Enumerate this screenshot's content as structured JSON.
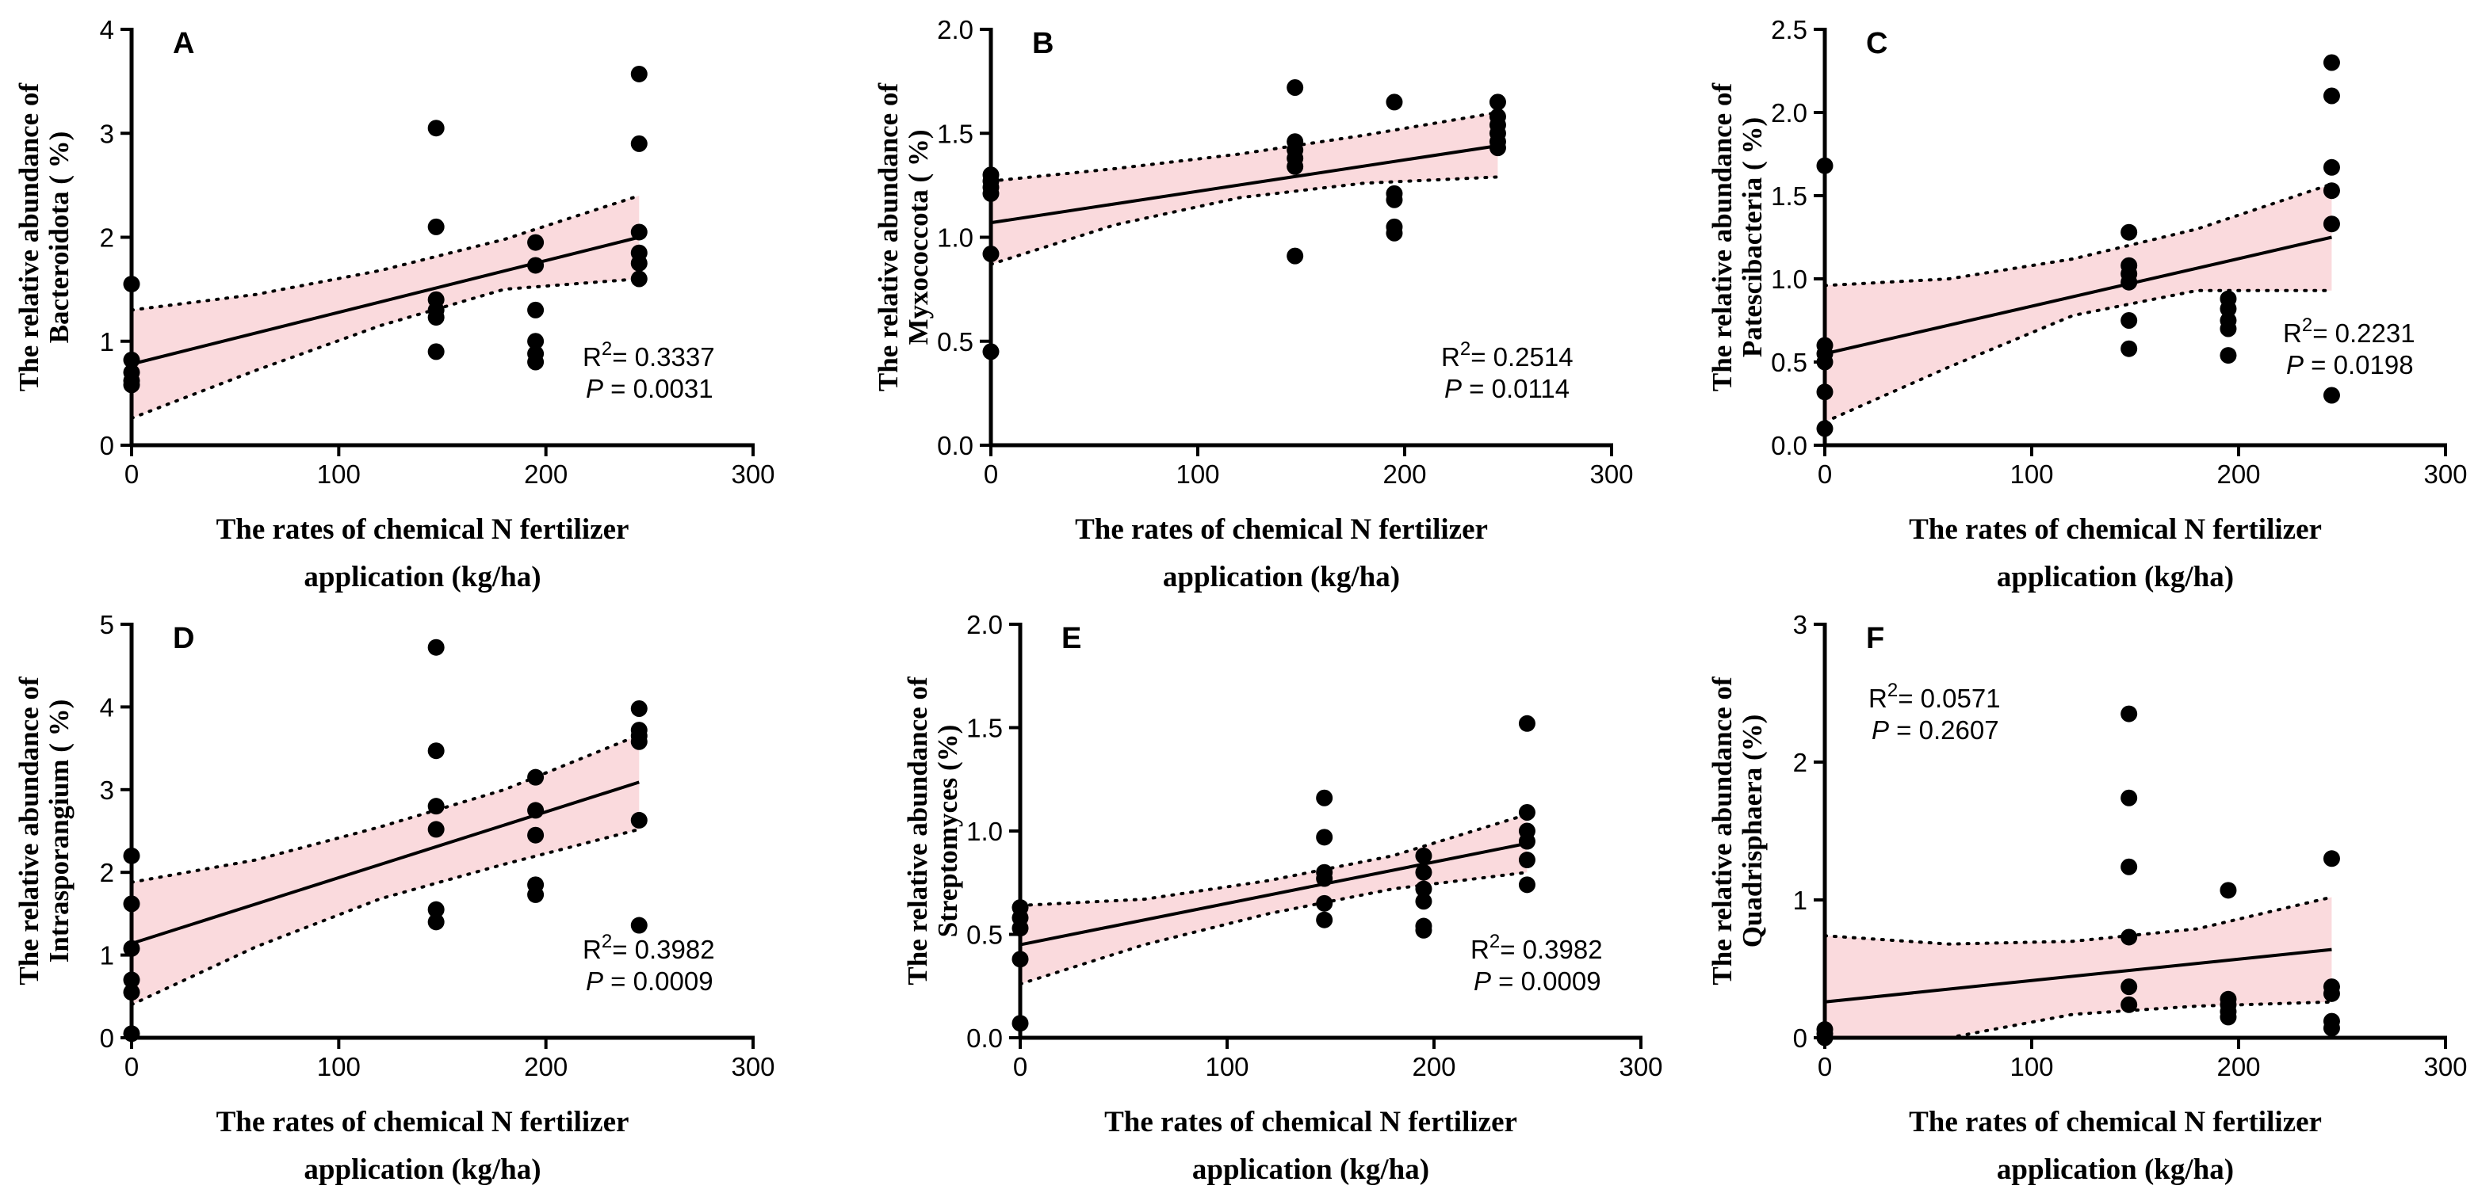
{
  "figure": {
    "x_axis_title_line1": "The rates of chemical N fertilizer",
    "x_axis_title_line2": "application (kg/ha)",
    "colors": {
      "band": "#fadadd",
      "ink": "#000000"
    }
  },
  "chart_data": [
    {
      "type": "scatter",
      "panel": "A",
      "ylabel_line1": "The relative abundance of",
      "ylabel_line2": "Bacteroidota ( %)",
      "xlabel_line1": "The rates of chemical N fertilizer",
      "xlabel_line2": "application (kg/ha)",
      "xlim": [
        0,
        300
      ],
      "ylim": [
        0,
        4
      ],
      "xticks": [
        0,
        100,
        200,
        300
      ],
      "xtick_labels": [
        "0",
        "100",
        "200",
        "300"
      ],
      "yticks": [
        0,
        1,
        2,
        3,
        4
      ],
      "ytick_labels": [
        "0",
        "1",
        "2",
        "3",
        "4"
      ],
      "points": [
        [
          0,
          1.55
        ],
        [
          0,
          0.82
        ],
        [
          0,
          0.7
        ],
        [
          0,
          0.62
        ],
        [
          0,
          0.58
        ],
        [
          147,
          3.05
        ],
        [
          147,
          2.1
        ],
        [
          147,
          1.4
        ],
        [
          147,
          1.3
        ],
        [
          147,
          1.23
        ],
        [
          147,
          0.9
        ],
        [
          195,
          1.95
        ],
        [
          195,
          1.73
        ],
        [
          195,
          1.3
        ],
        [
          195,
          1.0
        ],
        [
          195,
          0.88
        ],
        [
          195,
          0.8
        ],
        [
          245,
          3.57
        ],
        [
          245,
          2.9
        ],
        [
          245,
          2.05
        ],
        [
          245,
          1.85
        ],
        [
          245,
          1.75
        ],
        [
          245,
          1.6
        ]
      ],
      "fit": {
        "x": [
          0,
          245
        ],
        "y": [
          0.78,
          2.0
        ]
      },
      "ci_upper": [
        [
          0,
          1.3
        ],
        [
          60,
          1.45
        ],
        [
          120,
          1.68
        ],
        [
          180,
          1.98
        ],
        [
          245,
          2.4
        ]
      ],
      "ci_lower": [
        [
          0,
          0.26
        ],
        [
          60,
          0.72
        ],
        [
          120,
          1.15
        ],
        [
          180,
          1.5
        ],
        [
          245,
          1.6
        ]
      ],
      "r2_label": "R",
      "r2_sup": "2",
      "r2_value": "= 0.3337",
      "p_label": "P",
      "p_value": " = 0.0031",
      "stats_pos": "bottom-right"
    },
    {
      "type": "scatter",
      "panel": "B",
      "ylabel_line1": "The relative abundance of",
      "ylabel_line2": "Myxococcota ( %)",
      "xlabel_line1": "The rates of chemical N fertilizer",
      "xlabel_line2": "application (kg/ha)",
      "xlim": [
        0,
        300
      ],
      "ylim": [
        0,
        2
      ],
      "xticks": [
        0,
        100,
        200,
        300
      ],
      "xtick_labels": [
        "0",
        "100",
        "200",
        "300"
      ],
      "yticks": [
        0,
        0.5,
        1,
        1.5,
        2
      ],
      "ytick_labels": [
        "0.0",
        "0.5",
        "1.0",
        "1.5",
        "2.0"
      ],
      "points": [
        [
          0,
          1.3
        ],
        [
          0,
          1.27
        ],
        [
          0,
          1.24
        ],
        [
          0,
          1.21
        ],
        [
          0,
          0.92
        ],
        [
          0,
          0.45
        ],
        [
          147,
          1.72
        ],
        [
          147,
          1.46
        ],
        [
          147,
          1.42
        ],
        [
          147,
          1.38
        ],
        [
          147,
          1.34
        ],
        [
          147,
          0.91
        ],
        [
          195,
          1.65
        ],
        [
          195,
          1.21
        ],
        [
          195,
          1.18
        ],
        [
          195,
          1.05
        ],
        [
          195,
          1.02
        ],
        [
          245,
          1.65
        ],
        [
          245,
          1.58
        ],
        [
          245,
          1.54
        ],
        [
          245,
          1.5
        ],
        [
          245,
          1.46
        ],
        [
          245,
          1.43
        ]
      ],
      "fit": {
        "x": [
          0,
          245
        ],
        "y": [
          1.07,
          1.44
        ]
      },
      "ci_upper": [
        [
          0,
          1.27
        ],
        [
          60,
          1.33
        ],
        [
          120,
          1.4
        ],
        [
          180,
          1.49
        ],
        [
          245,
          1.6
        ]
      ],
      "ci_lower": [
        [
          0,
          0.87
        ],
        [
          60,
          1.06
        ],
        [
          120,
          1.19
        ],
        [
          180,
          1.26
        ],
        [
          245,
          1.29
        ]
      ],
      "r2_label": "R",
      "r2_sup": "2",
      "r2_value": "= 0.2514",
      "p_label": "P",
      "p_value": " = 0.0114",
      "stats_pos": "bottom-right"
    },
    {
      "type": "scatter",
      "panel": "C",
      "ylabel_line1": "The relative abundance of",
      "ylabel_line2": "Patescibacteria ( %)",
      "xlabel_line1": "The rates of chemical N fertilizer",
      "xlabel_line2": "application (kg/ha)",
      "xlim": [
        0,
        300
      ],
      "ylim": [
        0,
        2.5
      ],
      "xticks": [
        0,
        100,
        200,
        300
      ],
      "xtick_labels": [
        "0",
        "100",
        "200",
        "300"
      ],
      "yticks": [
        0,
        0.5,
        1,
        1.5,
        2,
        2.5
      ],
      "ytick_labels": [
        "0.0",
        "0.5",
        "1.0",
        "1.5",
        "2.0",
        "2.5"
      ],
      "points": [
        [
          0,
          1.68
        ],
        [
          0,
          0.6
        ],
        [
          0,
          0.55
        ],
        [
          0,
          0.5
        ],
        [
          0,
          0.32
        ],
        [
          0,
          0.1
        ],
        [
          147,
          1.28
        ],
        [
          147,
          1.08
        ],
        [
          147,
          1.03
        ],
        [
          147,
          0.98
        ],
        [
          147,
          0.75
        ],
        [
          147,
          0.58
        ],
        [
          195,
          0.88
        ],
        [
          195,
          0.82
        ],
        [
          195,
          0.75
        ],
        [
          195,
          0.7
        ],
        [
          195,
          0.54
        ],
        [
          245,
          2.3
        ],
        [
          245,
          2.1
        ],
        [
          245,
          1.67
        ],
        [
          245,
          1.53
        ],
        [
          245,
          1.33
        ],
        [
          245,
          0.3
        ]
      ],
      "fit": {
        "x": [
          0,
          245
        ],
        "y": [
          0.55,
          1.25
        ]
      },
      "ci_upper": [
        [
          0,
          0.96
        ],
        [
          60,
          1.0
        ],
        [
          120,
          1.12
        ],
        [
          180,
          1.3
        ],
        [
          245,
          1.57
        ]
      ],
      "ci_lower": [
        [
          0,
          0.14
        ],
        [
          60,
          0.47
        ],
        [
          120,
          0.78
        ],
        [
          180,
          0.93
        ],
        [
          245,
          0.93
        ]
      ],
      "r2_label": "R",
      "r2_sup": "2",
      "r2_value": "= 0.2231",
      "p_label": "P",
      "p_value": " = 0.0198",
      "stats_pos": "middle-right"
    },
    {
      "type": "scatter",
      "panel": "D",
      "ylabel_line1": "The relative abundance of",
      "ylabel_line2": "Intrasporangium ( %)",
      "xlabel_line1": "The rates of chemical N fertilizer",
      "xlabel_line2": "application (kg/ha)",
      "xlim": [
        0,
        300
      ],
      "ylim": [
        0,
        5
      ],
      "xticks": [
        0,
        100,
        200,
        300
      ],
      "xtick_labels": [
        "0",
        "100",
        "200",
        "300"
      ],
      "yticks": [
        0,
        1,
        2,
        3,
        4,
        5
      ],
      "ytick_labels": [
        "0",
        "1",
        "2",
        "3",
        "4",
        "5"
      ],
      "points": [
        [
          0,
          2.2
        ],
        [
          0,
          1.62
        ],
        [
          0,
          1.08
        ],
        [
          0,
          0.7
        ],
        [
          0,
          0.55
        ],
        [
          0,
          0.05
        ],
        [
          147,
          4.72
        ],
        [
          147,
          3.47
        ],
        [
          147,
          2.8
        ],
        [
          147,
          2.52
        ],
        [
          147,
          1.55
        ],
        [
          147,
          1.4
        ],
        [
          195,
          3.15
        ],
        [
          195,
          2.75
        ],
        [
          195,
          2.45
        ],
        [
          195,
          1.85
        ],
        [
          195,
          1.73
        ],
        [
          245,
          3.98
        ],
        [
          245,
          3.72
        ],
        [
          245,
          3.65
        ],
        [
          245,
          3.58
        ],
        [
          245,
          2.63
        ],
        [
          245,
          1.36
        ]
      ],
      "fit": {
        "x": [
          0,
          245
        ],
        "y": [
          1.14,
          3.09
        ]
      },
      "ci_upper": [
        [
          0,
          1.88
        ],
        [
          60,
          2.15
        ],
        [
          120,
          2.55
        ],
        [
          180,
          3.0
        ],
        [
          245,
          3.66
        ]
      ],
      "ci_lower": [
        [
          0,
          0.4
        ],
        [
          60,
          1.1
        ],
        [
          120,
          1.68
        ],
        [
          180,
          2.1
        ],
        [
          245,
          2.52
        ]
      ],
      "r2_label": "R",
      "r2_sup": "2",
      "r2_value": "= 0.3982",
      "p_label": "P",
      "p_value": " = 0.0009",
      "stats_pos": "bottom-right"
    },
    {
      "type": "scatter",
      "panel": "E",
      "ylabel_line1": "The relative abundance of",
      "ylabel_line2": "Streptomyces (%)",
      "xlabel_line1": "The rates of chemical N fertilizer",
      "xlabel_line2": "application (kg/ha)",
      "xlim": [
        0,
        300
      ],
      "ylim": [
        0,
        2
      ],
      "xticks": [
        0,
        100,
        200,
        300
      ],
      "xtick_labels": [
        "0",
        "100",
        "200",
        "300"
      ],
      "yticks": [
        0,
        0.5,
        1,
        1.5,
        2
      ],
      "ytick_labels": [
        "0.0",
        "0.5",
        "1.0",
        "1.5",
        "2.0"
      ],
      "points": [
        [
          0,
          0.63
        ],
        [
          0,
          0.58
        ],
        [
          0,
          0.53
        ],
        [
          0,
          0.38
        ],
        [
          0,
          0.07
        ],
        [
          147,
          1.16
        ],
        [
          147,
          0.97
        ],
        [
          147,
          0.8
        ],
        [
          147,
          0.77
        ],
        [
          147,
          0.65
        ],
        [
          147,
          0.57
        ],
        [
          195,
          0.88
        ],
        [
          195,
          0.8
        ],
        [
          195,
          0.72
        ],
        [
          195,
          0.66
        ],
        [
          195,
          0.54
        ],
        [
          195,
          0.52
        ],
        [
          245,
          1.52
        ],
        [
          245,
          1.09
        ],
        [
          245,
          1.0
        ],
        [
          245,
          0.95
        ],
        [
          245,
          0.86
        ],
        [
          245,
          0.74
        ]
      ],
      "fit": {
        "x": [
          0,
          245
        ],
        "y": [
          0.45,
          0.94
        ]
      },
      "ci_upper": [
        [
          0,
          0.64
        ],
        [
          60,
          0.67
        ],
        [
          120,
          0.76
        ],
        [
          180,
          0.88
        ],
        [
          245,
          1.08
        ]
      ],
      "ci_lower": [
        [
          0,
          0.26
        ],
        [
          60,
          0.45
        ],
        [
          120,
          0.6
        ],
        [
          180,
          0.72
        ],
        [
          245,
          0.8
        ]
      ],
      "r2_label": "R",
      "r2_sup": "2",
      "r2_value": "= 0.3982",
      "p_label": "P",
      "p_value": " = 0.0009",
      "stats_pos": "bottom-right"
    },
    {
      "type": "scatter",
      "panel": "F",
      "ylabel_line1": "The relative abundance of",
      "ylabel_line2": "Quadrisphaera (%)",
      "xlabel_line1": "The rates of chemical N fertilizer",
      "xlabel_line2": "application (kg/ha)",
      "xlim": [
        0,
        300
      ],
      "ylim": [
        0,
        3
      ],
      "xticks": [
        0,
        100,
        200,
        300
      ],
      "xtick_labels": [
        "0",
        "100",
        "200",
        "300"
      ],
      "yticks": [
        0,
        1,
        2,
        3
      ],
      "ytick_labels": [
        "0",
        "1",
        "2",
        "3"
      ],
      "points": [
        [
          0,
          0.06
        ],
        [
          0,
          0.03
        ],
        [
          0,
          0.0
        ],
        [
          147,
          2.35
        ],
        [
          147,
          1.74
        ],
        [
          147,
          1.24
        ],
        [
          147,
          0.73
        ],
        [
          147,
          0.37
        ],
        [
          147,
          0.24
        ],
        [
          195,
          1.07
        ],
        [
          195,
          0.28
        ],
        [
          195,
          0.24
        ],
        [
          195,
          0.19
        ],
        [
          195,
          0.15
        ],
        [
          245,
          1.3
        ],
        [
          245,
          0.37
        ],
        [
          245,
          0.32
        ],
        [
          245,
          0.12
        ],
        [
          245,
          0.07
        ]
      ],
      "fit": {
        "x": [
          0,
          245
        ],
        "y": [
          0.26,
          0.64
        ]
      },
      "ci_upper": [
        [
          0,
          0.74
        ],
        [
          60,
          0.68
        ],
        [
          120,
          0.7
        ],
        [
          180,
          0.79
        ],
        [
          245,
          1.02
        ]
      ],
      "ci_lower": [
        [
          0,
          -0.2
        ],
        [
          60,
          0.0
        ],
        [
          120,
          0.17
        ],
        [
          180,
          0.23
        ],
        [
          245,
          0.26
        ]
      ],
      "r2_label": "R",
      "r2_sup": "2",
      "r2_value": "= 0.0571",
      "p_label": "P",
      "p_value": " = 0.2607",
      "stats_pos": "top-left"
    }
  ]
}
